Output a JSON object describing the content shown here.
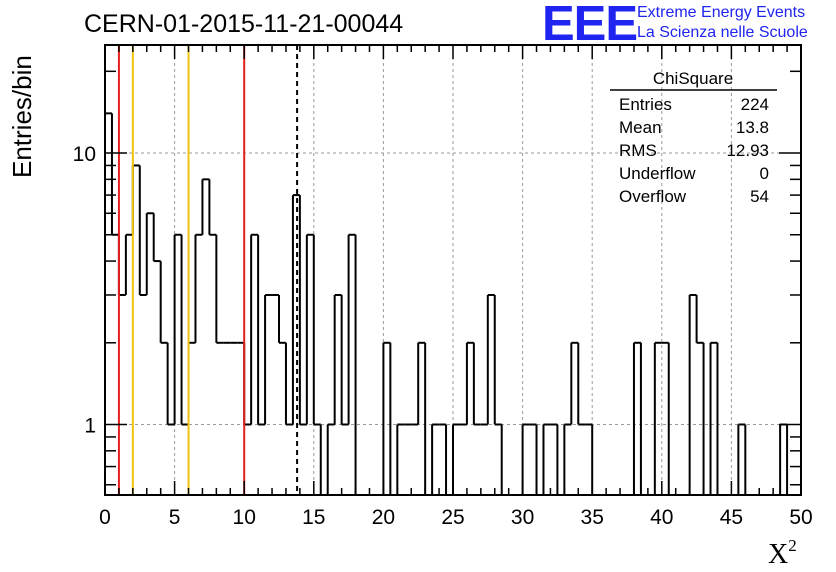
{
  "title": "CERN-01-2015-11-21-00044",
  "logo": {
    "mark": "EEE",
    "line1": "Extreme Energy Events",
    "line2": "La Scienza nelle Scuole",
    "color": "#1f24f0"
  },
  "stats_box": {
    "name": "ChiSquare",
    "rows": [
      {
        "label": "Entries",
        "value": "224"
      },
      {
        "label": "Mean",
        "value": "13.8"
      },
      {
        "label": "RMS",
        "value": "12.93"
      },
      {
        "label": "Underflow",
        "value": "0"
      },
      {
        "label": "Overflow",
        "value": "54"
      }
    ]
  },
  "chart_data": {
    "type": "histogram",
    "title": "CERN-01-2015-11-21-00044",
    "ylabel": "Entries/bin",
    "xlabel": "X",
    "xlabel_superscript": "2",
    "xlim": [
      0,
      50
    ],
    "ylim": [
      0.55,
      25
    ],
    "yscale": "log",
    "grid": true,
    "bin_width": 0.5,
    "bin_contents": [
      14,
      5,
      3,
      5,
      9,
      3,
      6,
      4,
      2,
      1,
      5,
      1,
      2,
      5,
      8,
      5,
      2,
      2,
      2,
      2,
      1,
      5,
      1,
      3,
      3,
      2,
      1,
      7,
      1,
      5,
      1,
      0.5,
      1,
      3,
      1,
      5,
      0.5,
      0.5,
      0,
      0,
      2,
      0,
      1,
      1,
      1,
      2,
      0,
      1,
      1,
      0,
      1,
      1,
      2,
      1,
      1,
      3,
      1,
      0.5,
      0,
      0,
      1,
      1,
      0,
      1,
      1,
      0.5,
      1,
      2,
      1,
      1,
      0,
      0,
      0,
      0,
      0,
      0,
      2,
      0,
      0,
      2,
      2,
      0,
      0,
      0,
      3,
      2,
      0,
      2,
      0,
      0,
      0,
      1,
      0,
      0,
      0,
      0,
      0,
      1
    ],
    "x_ticks": [
      "0",
      "5",
      "10",
      "15",
      "20",
      "25",
      "30",
      "35",
      "40",
      "45",
      "50"
    ],
    "y_ticks": [
      "1",
      "10"
    ],
    "vertical_lines": [
      {
        "x": 1,
        "color": "#e3201b",
        "style": "solid"
      },
      {
        "x": 2,
        "color": "#f2c20f",
        "style": "solid"
      },
      {
        "x": 6,
        "color": "#f2c20f",
        "style": "solid"
      },
      {
        "x": 10,
        "color": "#e3201b",
        "style": "solid"
      },
      {
        "x": 13.8,
        "color": "#000000",
        "style": "dashed"
      }
    ]
  }
}
